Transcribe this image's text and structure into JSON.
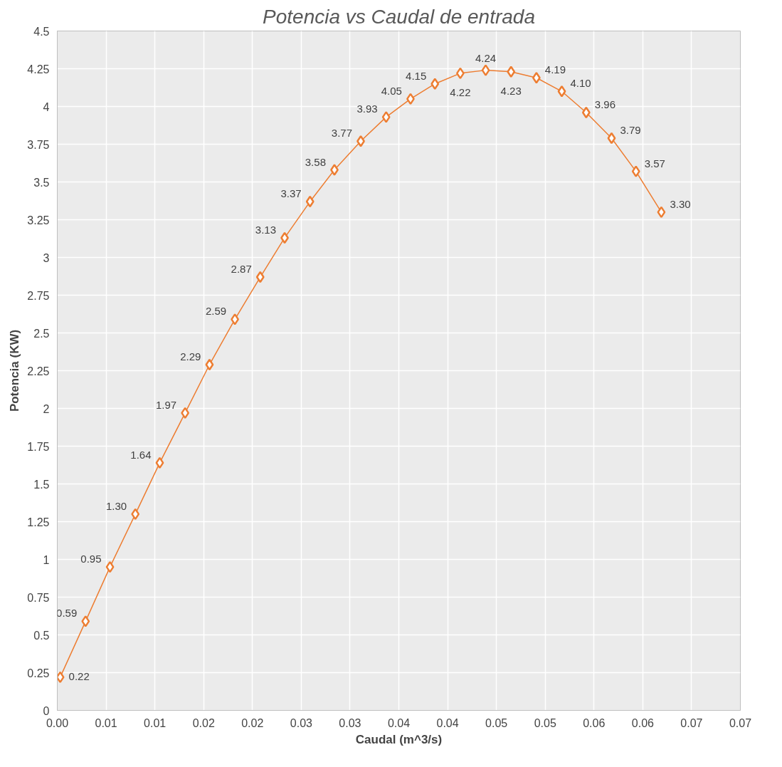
{
  "chart_data": {
    "type": "line",
    "title": "Potencia vs Caudal de entrada",
    "xlabel": "Caudal (m^3/s)",
    "ylabel": "Potencia (KW)",
    "x": [
      0.0003,
      0.0029,
      0.0054,
      0.008,
      0.0105,
      0.0131,
      0.0156,
      0.0182,
      0.0208,
      0.0233,
      0.0259,
      0.0284,
      0.0311,
      0.0337,
      0.0362,
      0.0387,
      0.0413,
      0.0439,
      0.0465,
      0.0491,
      0.0517,
      0.0542,
      0.0568,
      0.0593,
      0.0619
    ],
    "series": [
      {
        "color": "#ed7d31",
        "values": [
          0.22,
          0.59,
          0.95,
          1.3,
          1.64,
          1.97,
          2.29,
          2.59,
          2.87,
          3.13,
          3.37,
          3.58,
          3.77,
          3.93,
          4.05,
          4.15,
          4.22,
          4.24,
          4.23,
          4.19,
          4.1,
          3.96,
          3.79,
          3.57,
          3.3
        ]
      }
    ],
    "value_labels": [
      "0.22",
      "0.59",
      "0.95",
      "1.30",
      "1.64",
      "1.97",
      "2.29",
      "2.59",
      "2.87",
      "3.13",
      "3.37",
      "3.58",
      "3.77",
      "3.93",
      "4.05",
      "4.15",
      "4.22",
      "4.24",
      "4.23",
      "4.19",
      "4.10",
      "3.96",
      "3.79",
      "3.57",
      "3.30"
    ],
    "xlim": [
      0,
      0.07
    ],
    "xticks": [
      {
        "value": 0,
        "label": "0.00"
      },
      {
        "value": 0.005,
        "label": "0.01"
      },
      {
        "value": 0.01,
        "label": "0.01"
      },
      {
        "value": 0.015,
        "label": "0.02"
      },
      {
        "value": 0.02,
        "label": "0.02"
      },
      {
        "value": 0.025,
        "label": "0.03"
      },
      {
        "value": 0.03,
        "label": "0.03"
      },
      {
        "value": 0.035,
        "label": "0.04"
      },
      {
        "value": 0.04,
        "label": "0.04"
      },
      {
        "value": 0.045,
        "label": "0.05"
      },
      {
        "value": 0.05,
        "label": "0.05"
      },
      {
        "value": 0.055,
        "label": "0.06"
      },
      {
        "value": 0.06,
        "label": "0.06"
      },
      {
        "value": 0.065,
        "label": "0.07"
      },
      {
        "value": 0.07,
        "label": "0.07"
      }
    ],
    "ylim": [
      0,
      4.5
    ],
    "yticks": [
      0,
      0.25,
      0.5,
      0.75,
      1,
      1.25,
      1.5,
      1.75,
      2,
      2.25,
      2.5,
      2.75,
      3,
      3.25,
      3.5,
      3.75,
      4,
      4.25,
      4.5
    ],
    "grid": true,
    "marker": "diamond",
    "line_style": "solid"
  }
}
